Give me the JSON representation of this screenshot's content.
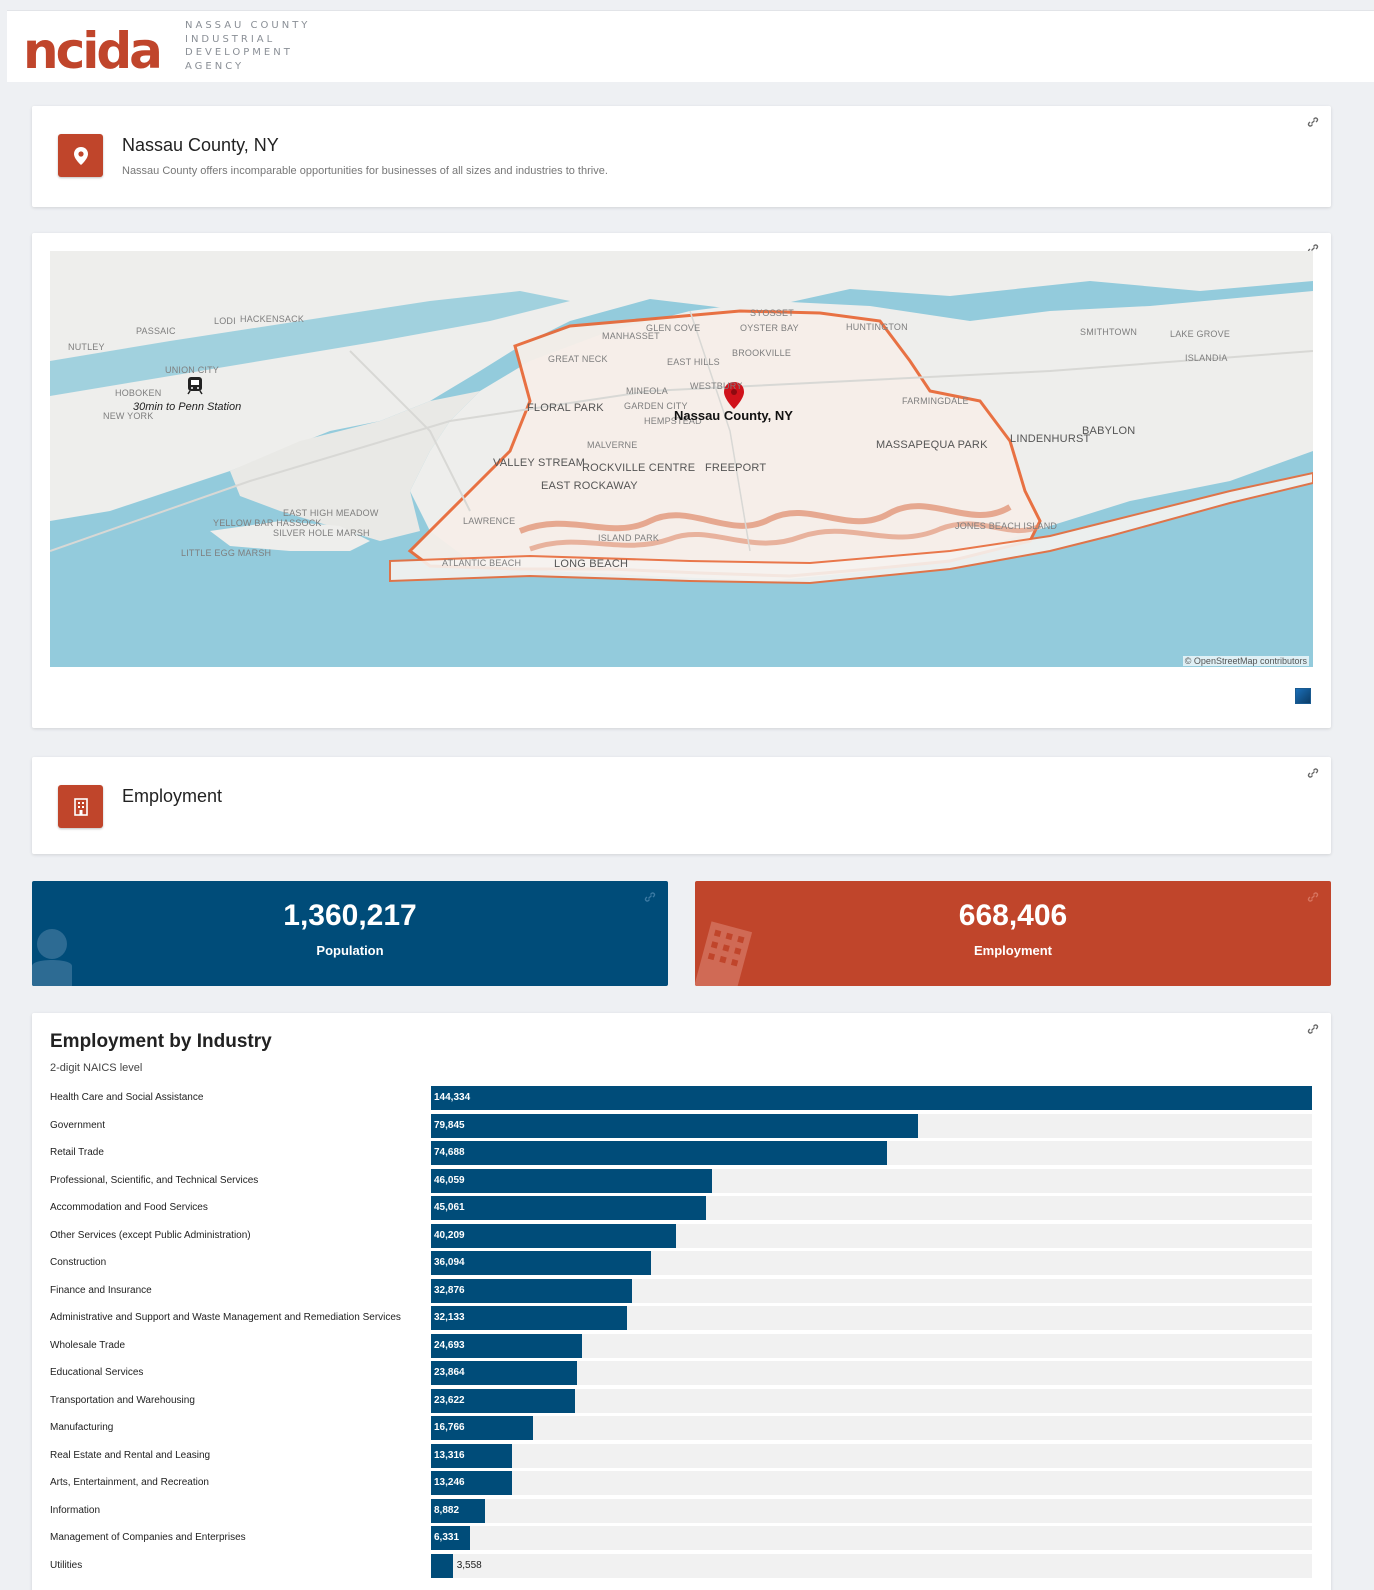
{
  "header": {
    "logo_text": "ncida",
    "logo_subtitle": "Nassau County Industrial Development Agency"
  },
  "location_card": {
    "title": "Nassau County, NY",
    "description": "Nassau County offers incomparable opportunities for businesses of all sizes and industries to thrive.",
    "icon": "map-pin-icon"
  },
  "map": {
    "callout": "Nassau County, NY",
    "transit_note": "30min to Penn Station",
    "attribution": "© OpenStreetMap contributors",
    "place_labels": [
      "Glen Cove",
      "Oyster Bay",
      "Mineola",
      "Westbury",
      "Garden City",
      "Floral Park",
      "Valley Stream",
      "Rockville Centre",
      "East Rockaway",
      "Freeport",
      "Massapequa Park",
      "Lindenhurst",
      "Babylon",
      "Long Beach",
      "Atlantic Beach",
      "Lawrence",
      "Hempstead",
      "Malverne",
      "Hoboken",
      "New York",
      "Union City",
      "Nutley",
      "Passaic",
      "Hackensack",
      "Lodi",
      "Manhasset",
      "Great Neck",
      "East Hills",
      "Brookville",
      "Syosset",
      "Huntington",
      "Farmingdale",
      "Lake Grove",
      "Islandia",
      "Smithtown",
      "Yellow Bar Hassock",
      "Little Egg Marsh",
      "East High Meadow",
      "Silver Hole Marsh",
      "Island Park",
      "Jones Beach Island"
    ],
    "colors": {
      "water": "#93cbdc",
      "land": "#eeeeec",
      "boundary": "#e86b3a"
    }
  },
  "employment_card": {
    "title": "Employment",
    "icon": "building-icon"
  },
  "stats": [
    {
      "value": "1,360,217",
      "label": "Population",
      "color": "#004c79",
      "icon": "person-icon"
    },
    {
      "value": "668,406",
      "label": "Employment",
      "color": "#c0452b",
      "icon": "building-icon"
    }
  ],
  "chart_data": {
    "type": "bar",
    "orientation": "horizontal",
    "title": "Employment by Industry",
    "subtitle": "2-digit NAICS level",
    "bar_color": "#004c79",
    "categories": [
      "Health Care and Social Assistance",
      "Government",
      "Retail Trade",
      "Professional, Scientific, and Technical Services",
      "Accommodation and Food Services",
      "Other Services (except Public Administration)",
      "Construction",
      "Finance and Insurance",
      "Administrative and Support and Waste Management and Remediation Services",
      "Wholesale Trade",
      "Educational Services",
      "Transportation and Warehousing",
      "Manufacturing",
      "Real Estate and Rental and Leasing",
      "Arts, Entertainment, and Recreation",
      "Information",
      "Management of Companies and Enterprises",
      "Utilities"
    ],
    "values": [
      144334,
      79845,
      74688,
      46059,
      45061,
      40209,
      36094,
      32876,
      32133,
      24693,
      23864,
      23622,
      16766,
      13316,
      13246,
      8882,
      6331,
      3558
    ],
    "value_labels": [
      "144,334",
      "79,845",
      "74,688",
      "46,059",
      "45,061",
      "40,209",
      "36,094",
      "32,876",
      "32,133",
      "24,693",
      "23,864",
      "23,622",
      "16,766",
      "13,316",
      "13,246",
      "8,882",
      "6,331",
      "3,558"
    ],
    "xlim": [
      0,
      144334
    ]
  }
}
